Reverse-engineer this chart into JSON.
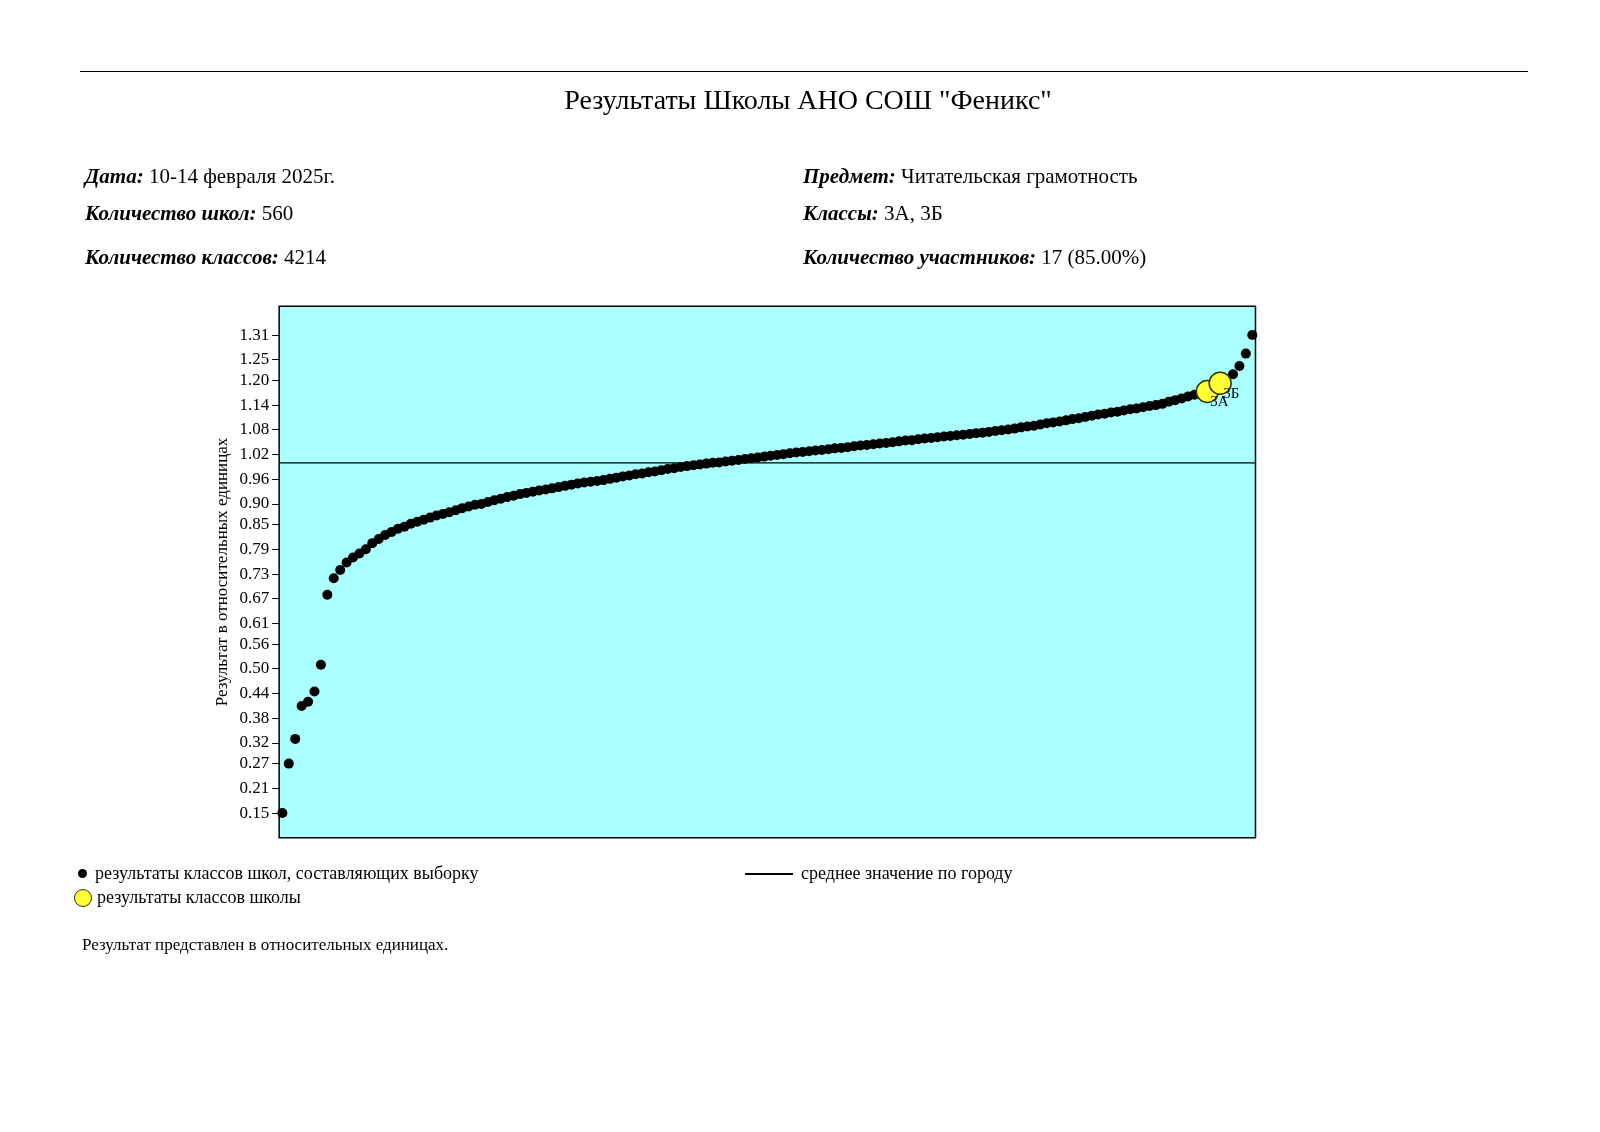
{
  "chart_data": {
    "type": "scatter",
    "title": "Результаты Школы АНО СОШ \"Феникс\"",
    "ylabel": "Результат в относительных единицах",
    "annotations": [
      {
        "text": "3А",
        "y": 1.173
      },
      {
        "text": "3Б",
        "y": 1.193
      },
      "Дата: 10-14 февраля 2025г.",
      "Предмет: Читательская грамотность",
      "Количество школ:  560",
      "Классы: 3А, 3Б",
      "Количество классов: 4214",
      "Количество участников: 17 (85.00%)",
      "Результат представлен в относительных единицах."
    ],
    "categories": [
      null,
      null,
      null,
      null,
      null,
      null,
      null,
      null,
      null,
      null,
      null,
      null,
      null,
      null,
      null,
      null,
      null,
      null,
      null,
      null,
      null,
      null,
      null,
      null,
      null,
      null,
      null,
      null,
      null,
      null,
      null,
      null,
      null,
      null,
      null,
      null,
      null,
      null,
      null,
      null,
      null,
      null,
      null,
      null,
      null,
      null,
      null,
      null,
      null,
      null,
      null,
      null,
      null,
      null,
      null,
      null,
      null,
      null,
      null,
      null,
      null,
      null,
      null,
      null,
      null,
      null,
      null,
      null,
      null,
      null,
      null,
      null,
      null,
      null,
      null,
      null,
      null,
      null,
      null,
      null,
      null,
      null,
      null,
      null,
      null,
      null,
      null,
      null,
      null,
      null,
      null,
      null,
      null,
      null,
      null,
      null,
      null,
      null,
      null,
      null,
      null,
      null,
      null,
      null,
      null,
      null,
      null,
      null,
      null,
      null,
      null,
      null,
      null,
      null,
      null,
      null,
      null,
      null,
      null,
      null,
      null,
      null,
      null,
      null,
      null,
      null,
      null,
      null,
      null,
      null,
      null,
      null,
      null,
      null,
      null,
      null,
      null,
      null,
      null,
      null,
      null,
      null,
      null,
      null,
      null,
      null,
      null,
      null,
      null,
      null,
      null,
      null
    ],
    "series": [
      {
        "name": "результаты классов школ, составляющих выборку",
        "color": "#000000",
        "values": [
          0.15,
          0.27,
          0.33,
          0.41,
          0.42,
          0.445,
          0.51,
          0.68,
          0.72,
          0.74,
          0.758,
          0.77,
          0.78,
          0.79,
          0.805,
          0.815,
          0.825,
          0.832,
          0.84,
          0.845,
          0.852,
          0.857,
          0.862,
          0.867,
          0.872,
          0.876,
          0.88,
          0.885,
          0.89,
          0.894,
          0.898,
          0.9,
          0.905,
          0.909,
          0.913,
          0.917,
          0.92,
          0.924,
          0.927,
          0.93,
          0.933,
          0.935,
          0.938,
          0.941,
          0.944,
          0.947,
          0.95,
          0.952,
          0.954,
          0.956,
          0.958,
          0.961,
          0.964,
          0.967,
          0.969,
          0.972,
          0.974,
          0.977,
          0.979,
          0.982,
          0.985,
          0.987,
          0.99,
          0.992,
          0.994,
          0.996,
          0.998,
          1.0,
          1.001,
          1.003,
          1.005,
          1.007,
          1.009,
          1.011,
          1.013,
          1.015,
          1.017,
          1.019,
          1.021,
          1.023,
          1.025,
          1.026,
          1.028,
          1.03,
          1.031,
          1.033,
          1.035,
          1.036,
          1.038,
          1.04,
          1.042,
          1.043,
          1.045,
          1.047,
          1.048,
          1.05,
          1.052,
          1.054,
          1.055,
          1.057,
          1.059,
          1.06,
          1.062,
          1.064,
          1.065,
          1.067,
          1.068,
          1.07,
          1.072,
          1.073,
          1.075,
          1.077,
          1.079,
          1.081,
          1.083,
          1.086,
          1.088,
          1.09,
          1.093,
          1.096,
          1.098,
          1.1,
          1.103,
          1.106,
          1.108,
          1.111,
          1.114,
          1.117,
          1.119,
          1.122,
          1.124,
          1.127,
          1.13,
          1.132,
          1.135,
          1.138,
          1.14,
          1.143,
          1.148,
          1.152,
          1.156,
          1.161,
          1.165,
          null,
          null,
          null,
          null,
          null,
          1.215,
          1.235,
          1.265,
          1.31
        ]
      },
      {
        "name": "результаты классов школы",
        "color": "#ffff33",
        "values": [
          null,
          null,
          null,
          null,
          null,
          null,
          null,
          null,
          null,
          null,
          null,
          null,
          null,
          null,
          null,
          null,
          null,
          null,
          null,
          null,
          null,
          null,
          null,
          null,
          null,
          null,
          null,
          null,
          null,
          null,
          null,
          null,
          null,
          null,
          null,
          null,
          null,
          null,
          null,
          null,
          null,
          null,
          null,
          null,
          null,
          null,
          null,
          null,
          null,
          null,
          null,
          null,
          null,
          null,
          null,
          null,
          null,
          null,
          null,
          null,
          null,
          null,
          null,
          null,
          null,
          null,
          null,
          null,
          null,
          null,
          null,
          null,
          null,
          null,
          null,
          null,
          null,
          null,
          null,
          null,
          null,
          null,
          null,
          null,
          null,
          null,
          null,
          null,
          null,
          null,
          null,
          null,
          null,
          null,
          null,
          null,
          null,
          null,
          null,
          null,
          null,
          null,
          null,
          null,
          null,
          null,
          null,
          null,
          null,
          null,
          null,
          null,
          null,
          null,
          null,
          null,
          null,
          null,
          null,
          null,
          null,
          null,
          null,
          null,
          null,
          null,
          null,
          null,
          null,
          null,
          null,
          null,
          null,
          null,
          null,
          null,
          null,
          null,
          null,
          null,
          null,
          null,
          null,
          null,
          1.173,
          null,
          1.193,
          null,
          null,
          null,
          null,
          null
        ]
      }
    ],
    "ylim": [
      0.09,
      1.38
    ],
    "yticks": [
      0.15,
      0.21,
      0.27,
      0.32,
      0.38,
      0.44,
      {
        "value": 0.5,
        "label": "0.50"
      },
      0.56,
      0.61,
      0.67,
      0.73,
      0.79,
      0.85,
      {
        "value": 0.9,
        "label": "0.90"
      },
      0.96,
      1.02,
      1.08,
      1.14,
      {
        "value": 1.2,
        "label": "1.20"
      },
      1.25,
      1.31
    ],
    "ref_lines": [
      {
        "axis": "y",
        "value": 1.0,
        "label": "среднее значение по городу",
        "color": "#000000"
      }
    ],
    "tick_labels": "y",
    "legend": "bottom",
    "marker": "circle",
    "grid": false
  }
}
